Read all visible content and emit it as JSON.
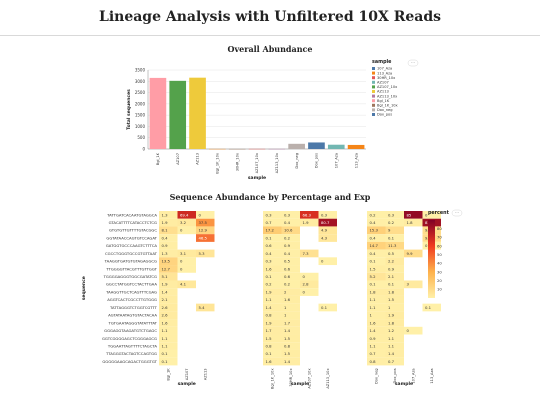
{
  "page": {
    "title": "Lineage Analysis with Unfiltered 10X Reads",
    "section1_title": "Overall Abundance",
    "section2_title": "Sequence Abundance by Percentage and Exp"
  },
  "chart_data": [
    {
      "type": "bar",
      "categories": [
        "Bgl_1K",
        "AZ107",
        "AZ113",
        "Bgl_1K_10x",
        "30HR_10x",
        "AZ107_10x",
        "AZ113_10x",
        "Dox_neg",
        "Dox_pos",
        "107_Aza",
        "113_Aza"
      ],
      "values": [
        3150,
        3020,
        3160,
        5,
        4,
        6,
        5,
        230,
        290,
        190,
        180
      ],
      "colors": [
        "#ff9da6",
        "#54a24b",
        "#eeca3b",
        "#f58518",
        "#9d755d",
        "#e45756",
        "#b279a2",
        "#bab0ac",
        "#4c78a8",
        "#72b7b2",
        "#f58518"
      ],
      "ylabel": "Total sequences",
      "xlabel": "sample",
      "yticks": [
        0,
        500,
        1000,
        1500,
        2000,
        2500,
        3000,
        3500
      ],
      "ylim": [
        0,
        3500
      ],
      "legend_title": "sample",
      "legend_entries": [
        {
          "label": "107_Aza",
          "color": "#4c78a8"
        },
        {
          "label": "113_Aza",
          "color": "#f58518"
        },
        {
          "label": "30HR_10x",
          "color": "#e45756"
        },
        {
          "label": "AZ107",
          "color": "#72b7b2"
        },
        {
          "label": "AZ107_10x",
          "color": "#54a24b"
        },
        {
          "label": "AZ113",
          "color": "#eeca3b"
        },
        {
          "label": "AZ113_10x",
          "color": "#b279a2"
        },
        {
          "label": "Bgl_1K",
          "color": "#ff9da6"
        },
        {
          "label": "Bgl_1K_10x",
          "color": "#9d755d"
        },
        {
          "label": "Dox_neg",
          "color": "#bab0ac"
        },
        {
          "label": "Dox_pos",
          "color": "#4c78a8"
        }
      ],
      "legend_placement": "right"
    },
    {
      "type": "heatmap",
      "ylabel": "sequence",
      "legend_title": "percent",
      "legend_ticks": [
        10,
        20,
        30,
        40,
        50,
        60,
        70,
        80
      ],
      "color_range": [
        0,
        90
      ],
      "rows": [
        "TATTGATCACAATGTAGGCA",
        "GTACATTTTCATACCTCTCG",
        "GTGTGTTGTTTTGTACGGC",
        "GGTATAACCAGTGTCCAGAT",
        "GATGGTGCCCAAGTCTTTCA",
        "CGCCTGGGTGCCGTGTTAAT",
        "TAAGGTGATGTGTAGAGGCG",
        "TTGGGGTTACGTTTGTTGGT",
        "TGGGGAGGGTGGCGATATCG",
        "GGCCTATGGTCCTACTTGAA",
        "TAAGGTTGCTCAGTTTCGAG",
        "AGGTCACTCGCCTTGTGGG",
        "TATTAGGGTCTGGTCGTTT",
        "AGTATAATAGTGTACTACAA",
        "TGTGAATAGGGTATATTTAT",
        "GGGAGGTAAGATGTCTGAGC",
        "GGTCGGGGAGCTCGGGAGCG",
        "TGGAATTAGTTTTCTAGCTA",
        "TTAGGGTACTAGTCCAGTGG",
        "GGGGGAAGCAGACTGGGTGT"
      ],
      "panels": [
        {
          "xlabel": "sample",
          "columns": [
            "Bgl_1K",
            "AZ107",
            "AZ113"
          ],
          "cells": [
            [
              "1.3",
              "69.4",
              "0"
            ],
            [
              "1.9",
              "3.2",
              "37.5"
            ],
            [
              "8.1",
              "0",
              "12.9"
            ],
            [
              "0.4",
              "",
              "46.5"
            ],
            [
              "0.9",
              "",
              ""
            ],
            [
              "1.3",
              "3.1",
              "5.3"
            ],
            [
              "13.5",
              "0",
              ""
            ],
            [
              "12.7",
              "0",
              ""
            ],
            [
              "5.1",
              "",
              ""
            ],
            [
              "1.9",
              "4.1",
              ""
            ],
            [
              "1.4",
              "",
              ""
            ],
            [
              "2.1",
              "",
              ""
            ],
            [
              "2.6",
              "",
              "5.4"
            ],
            [
              "2.6",
              "",
              ""
            ],
            [
              "1.6",
              "",
              ""
            ],
            [
              "1.1",
              "",
              ""
            ],
            [
              "1.1",
              "",
              ""
            ],
            [
              "1.1",
              "",
              ""
            ],
            [
              "0.1",
              "",
              ""
            ],
            [
              "0.1",
              "",
              ""
            ]
          ]
        },
        {
          "xlabel": "sample",
          "columns": [
            "Bgl_1K_10x",
            "30HR_10x",
            "AZ107_10x",
            "AZ113_10x"
          ],
          "cells": [
            [
              "0.3",
              "0.3",
              "66.3",
              "0.3"
            ],
            [
              "0.7",
              "0.4",
              "1.9",
              "80.7"
            ],
            [
              "17.2",
              "10.6",
              "",
              "4.9"
            ],
            [
              "0.1",
              "0.2",
              "",
              "4.3"
            ],
            [
              "0.6",
              "0.9",
              "",
              ""
            ],
            [
              "0.4",
              "0.4",
              "7.3",
              ""
            ],
            [
              "0.3",
              "0.5",
              "",
              "0"
            ],
            [
              "1.6",
              "0.6",
              "",
              ""
            ],
            [
              "0.1",
              "0.6",
              "0",
              ""
            ],
            [
              "0.2",
              "0.2",
              "2.8",
              ""
            ],
            [
              "1.9",
              "2",
              "0",
              ""
            ],
            [
              "1.1",
              "1.6",
              "",
              ""
            ],
            [
              "1.4",
              "1",
              "",
              "0.1"
            ],
            [
              "0.8",
              "1",
              "",
              ""
            ],
            [
              "1.9",
              "1.7",
              "",
              ""
            ],
            [
              "1.7",
              "1.4",
              "",
              ""
            ],
            [
              "1.5",
              "1.5",
              "",
              ""
            ],
            [
              "0.8",
              "0.8",
              "",
              ""
            ],
            [
              "0.1",
              "1.5",
              "",
              ""
            ],
            [
              "1.6",
              "1.4",
              "",
              ""
            ]
          ]
        },
        {
          "xlabel": "sample",
          "columns": [
            "Dox_neg",
            "Dox_pos",
            "107_Aza",
            "113_Aza"
          ],
          "cells": [
            [
              "0.2",
              "0.3",
              "85",
              "0"
            ],
            [
              "0.4",
              "0.2",
              "1.8",
              "81.6"
            ],
            [
              "15.3",
              "9",
              "",
              "9.3"
            ],
            [
              "0.4",
              "0.1",
              "",
              "9.8"
            ],
            [
              "14.7",
              "11.3",
              "",
              "0"
            ],
            [
              "0.4",
              "0.5",
              "9.9",
              ""
            ],
            [
              "0.1",
              "2.2",
              "",
              ""
            ],
            [
              "1.5",
              "0.9",
              "",
              ""
            ],
            [
              "5.2",
              "2.1",
              "",
              ""
            ],
            [
              "0.1",
              "0.1",
              "3",
              ""
            ],
            [
              "1.8",
              "1.8",
              "",
              ""
            ],
            [
              "1.1",
              "1.5",
              "",
              ""
            ],
            [
              "1.1",
              "1",
              "",
              "0.1"
            ],
            [
              "1",
              "1.9",
              "",
              ""
            ],
            [
              "1.6",
              "1.8",
              "",
              ""
            ],
            [
              "1.4",
              "1.2",
              "0",
              ""
            ],
            [
              "0.9",
              "1.1",
              "",
              ""
            ],
            [
              "1.1",
              "1.1",
              "",
              ""
            ],
            [
              "0.7",
              "1.4",
              "",
              ""
            ],
            [
              "0.8",
              "0.7",
              "",
              ""
            ]
          ]
        }
      ]
    }
  ]
}
